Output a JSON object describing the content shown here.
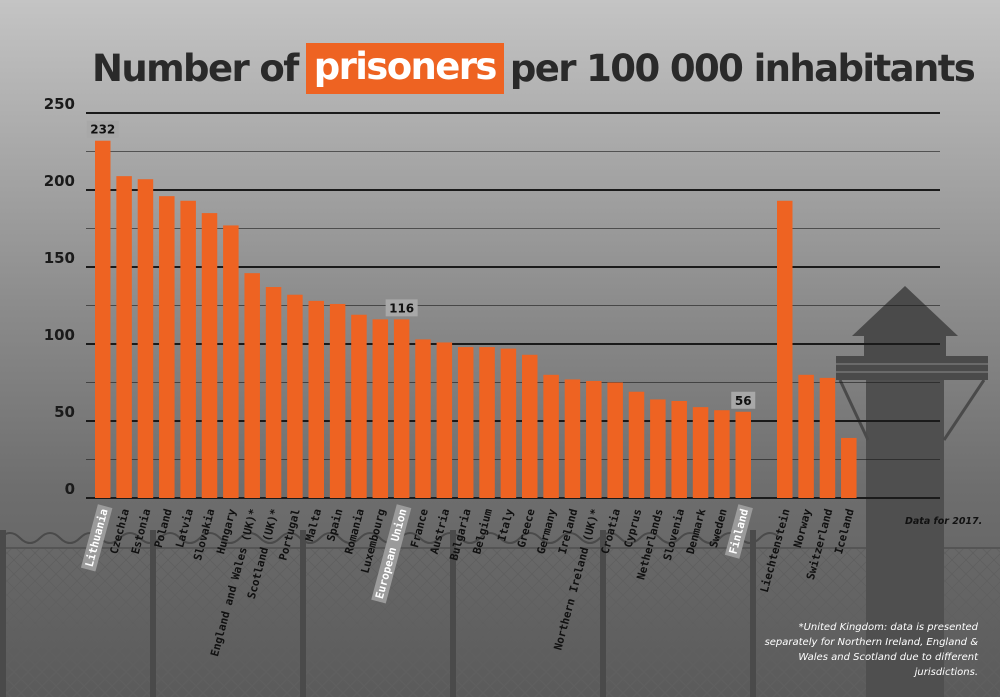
{
  "title": {
    "before": "Number of",
    "highlight": "prisoners",
    "after": "per  100 000 inhabitants"
  },
  "chart_data": {
    "type": "bar",
    "title": "Number of prisoners per  100 000 inhabitants",
    "xlabel": "",
    "ylabel": "",
    "ylim": [
      0,
      250
    ],
    "yticks": [
      0,
      50,
      100,
      150,
      200,
      250
    ],
    "grid": true,
    "groups": [
      {
        "categories": [
          "Lithuania",
          "Czechia",
          "Estonia",
          "Poland",
          "Latvia",
          "Slovakia",
          "Hungary",
          "England and Wales (UK)*",
          "Scotland (UK)*",
          "Portugal",
          "Malta",
          "Spain",
          "Romania",
          "Luxembourg",
          "European Union",
          "France",
          "Austria",
          "Bulgaria",
          "Belgium",
          "Italy",
          "Greece",
          "Germany",
          "Ireland",
          "Northern Ireland (UK)*",
          "Croatia",
          "Cyprus",
          "Netherlands",
          "Slovenia",
          "Denmark",
          "Sweden",
          "Finland"
        ],
        "values": [
          232,
          209,
          207,
          196,
          193,
          185,
          177,
          146,
          137,
          132,
          128,
          126,
          119,
          116,
          116,
          103,
          101,
          98,
          98,
          97,
          93,
          80,
          77,
          76,
          75,
          69,
          64,
          63,
          59,
          57,
          56
        ]
      },
      {
        "categories": [
          "Liechtenstein",
          "Norway",
          "Switzerland",
          "Iceland"
        ],
        "values": [
          193,
          80,
          78,
          39
        ]
      }
    ],
    "highlighted_labels": [
      "Lithuania",
      "European Union",
      "Finland"
    ],
    "value_labels": [
      {
        "category": "Lithuania",
        "text": "232"
      },
      {
        "category": "European Union",
        "text": "116"
      },
      {
        "category": "Finland",
        "text": "56"
      }
    ]
  },
  "note": "Data for 2017.",
  "footnote": "*United Kingdom: data is presented separately for Northern Ireland, England & Wales and Scotland due to different jurisdictions.",
  "colors": {
    "bar": "#ee6322",
    "title_highlight": "#ee6322",
    "title_text": "#2a2a2a",
    "gridline": "#1a1a1a",
    "label_highlight_bg": "#9b9b9b"
  }
}
